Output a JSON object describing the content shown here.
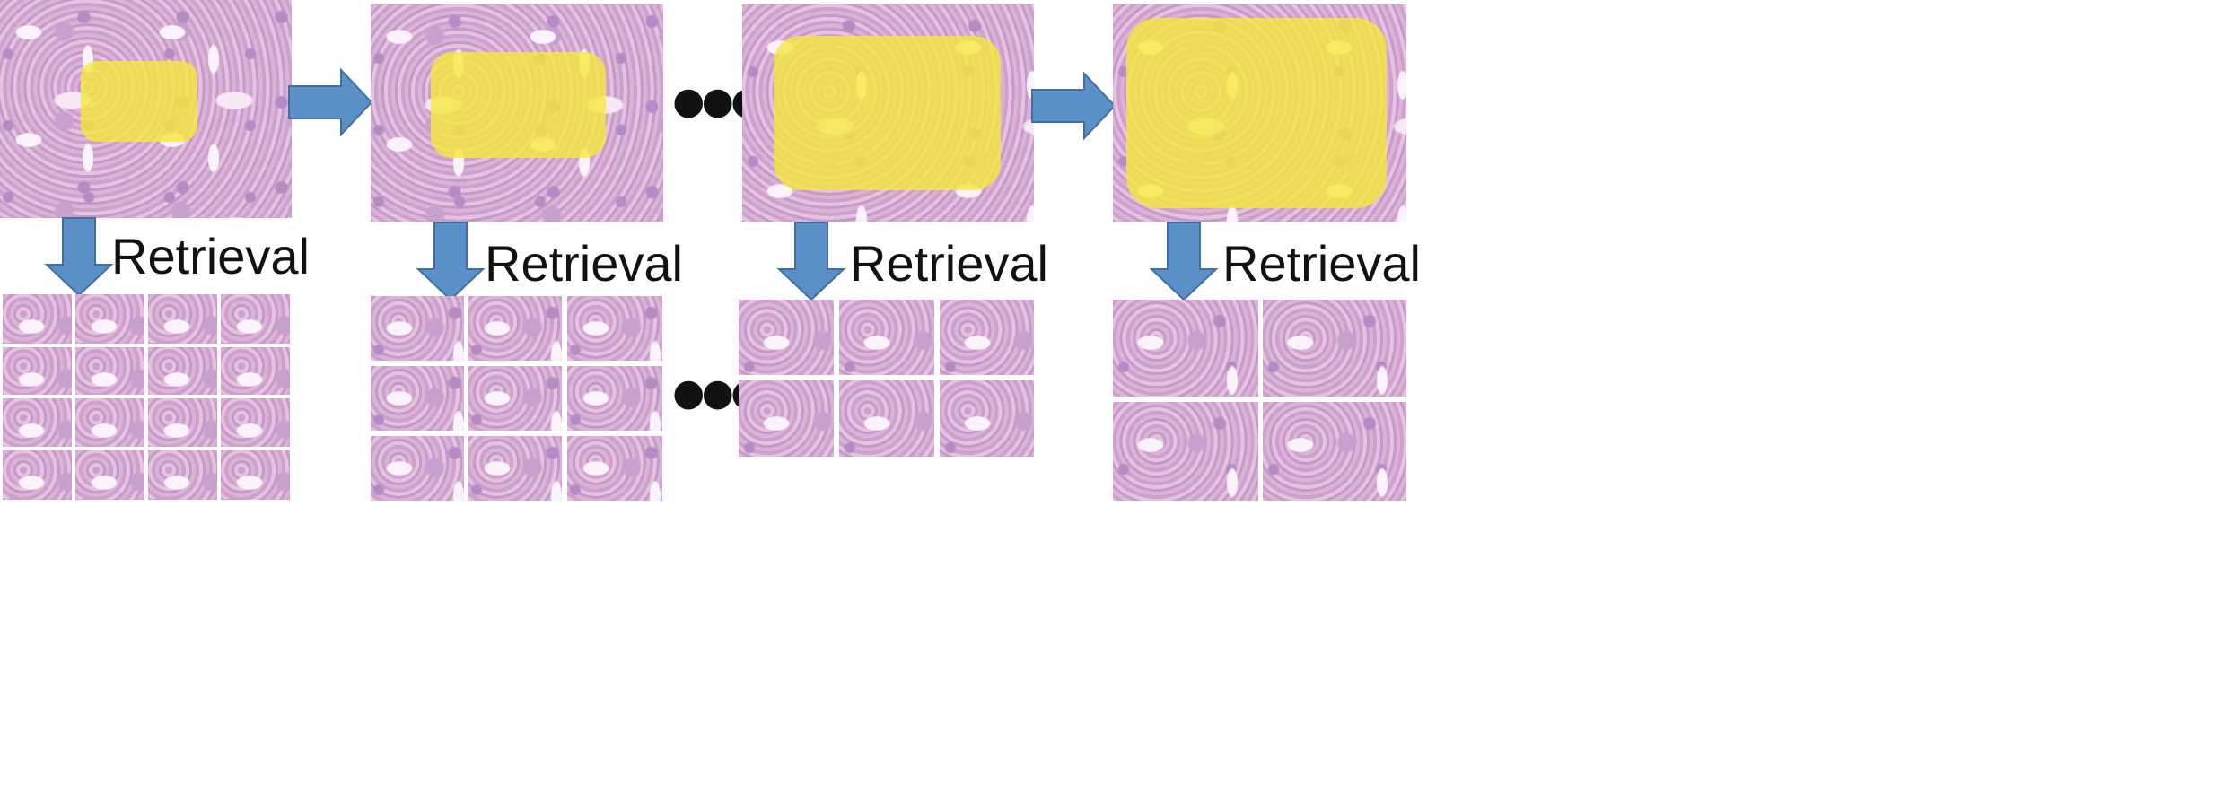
{
  "stages": [
    {
      "label": "Retrieval"
    },
    {
      "label": "Retrieval"
    },
    {
      "label": "Retrieval"
    },
    {
      "label": "Retrieval"
    }
  ],
  "ellipsis": "•••",
  "colors": {
    "arrow_fill": "#5b8fc7",
    "arrow_stroke": "#3f6fa3",
    "highlight": "#f5e83c",
    "tissue": "#d7a8d2",
    "text": "#111111"
  }
}
